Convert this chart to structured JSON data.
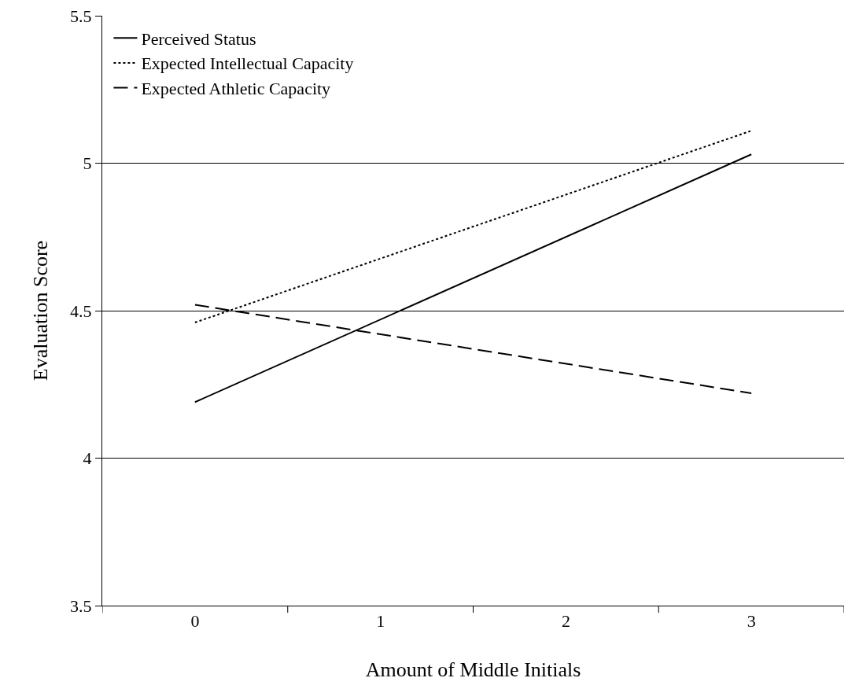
{
  "chart_data": {
    "type": "line",
    "xlabel": "Amount of Middle Initials",
    "ylabel": "Evaluation Score",
    "x": [
      0,
      3
    ],
    "series": [
      {
        "name": "Perceived Status",
        "color": "#000000",
        "line_style": "solid",
        "values": [
          4.19,
          5.03
        ]
      },
      {
        "name": "Expected Intellectual Capacity",
        "color": "#000000",
        "line_style": "dotted",
        "values": [
          4.46,
          5.11
        ]
      },
      {
        "name": "Expected Athletic Capacity",
        "color": "#000000",
        "line_style": "dashed",
        "values": [
          4.52,
          4.22
        ]
      }
    ],
    "xlim": [
      -0.5,
      3.5
    ],
    "xticks": [
      {
        "value": -0.5,
        "label": null
      },
      0,
      {
        "value": 0.5,
        "label": null
      },
      1,
      {
        "value": 1.5,
        "label": null
      },
      2,
      {
        "value": 2.5,
        "label": null
      },
      3,
      {
        "value": 3.5,
        "label": null
      }
    ],
    "ylim": [
      3.5,
      5.5
    ],
    "yticks": [
      3.5,
      4,
      4.5,
      5,
      5.5
    ],
    "grid": "y",
    "legend": "top left",
    "marker": "none"
  }
}
